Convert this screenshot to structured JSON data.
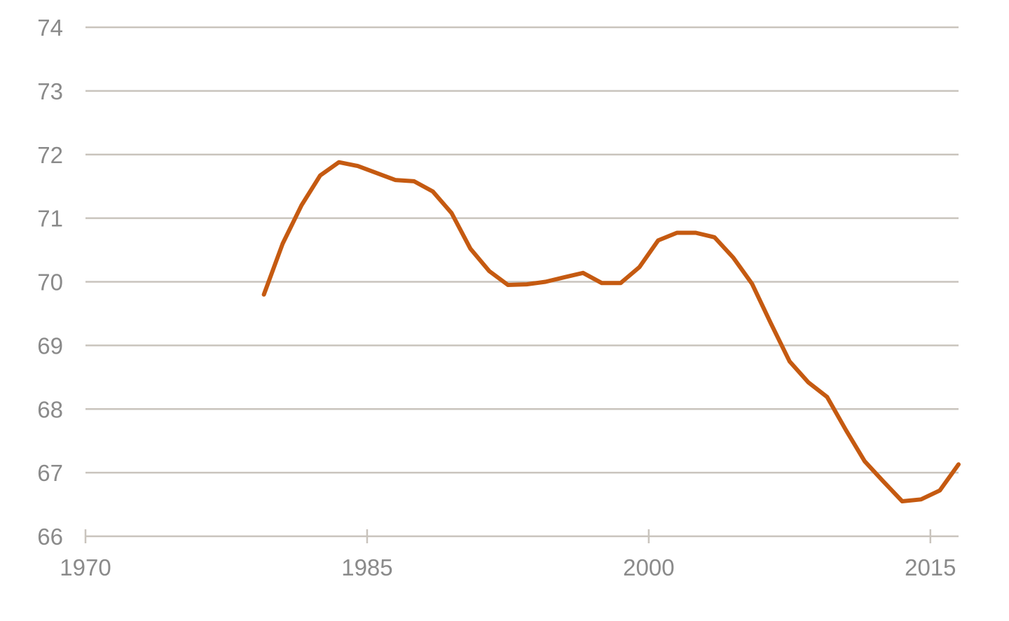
{
  "chart_data": {
    "type": "line",
    "title": "",
    "xlabel": "",
    "ylabel": "",
    "xlim": [
      1970,
      2016.5
    ],
    "ylim": [
      66,
      74
    ],
    "x_ticks": [
      1970,
      1985,
      2000,
      2015
    ],
    "y_ticks": [
      66,
      67,
      68,
      69,
      70,
      71,
      72,
      73,
      74
    ],
    "grid": true,
    "legend": "none",
    "colors": {
      "line": "#c55a11",
      "grid": "#c9c4bd",
      "axis": "#c9c4bd",
      "tick_text": "#8a8a8a"
    },
    "series": [
      {
        "x": [
          1979.5,
          1980.5,
          1981.5,
          1982.5,
          1983.5,
          1984.5,
          1985.5,
          1986.5,
          1987.5,
          1988.5,
          1989.5,
          1990.5,
          1991.5,
          1992.5,
          1993.5,
          1994.5,
          1995.5,
          1996.5,
          1997.5,
          1998.5,
          1999.5,
          2000.5,
          2001.5,
          2002.5,
          2003.5,
          2004.5,
          2005.5,
          2006.5,
          2007.5,
          2008.5,
          2009.5,
          2010.5,
          2011.5,
          2012.5,
          2013.5,
          2014.5,
          2015.5,
          2016.5
        ],
        "values": [
          69.8,
          70.6,
          71.2,
          71.67,
          71.88,
          71.82,
          71.71,
          71.6,
          71.58,
          71.42,
          71.08,
          70.52,
          70.17,
          69.95,
          69.96,
          70.0,
          70.07,
          70.14,
          69.98,
          69.98,
          70.23,
          70.65,
          70.77,
          70.77,
          70.7,
          70.38,
          69.97,
          69.35,
          68.75,
          68.42,
          68.19,
          67.67,
          67.18,
          66.86,
          66.55,
          66.58,
          66.72,
          67.13
        ]
      }
    ]
  }
}
